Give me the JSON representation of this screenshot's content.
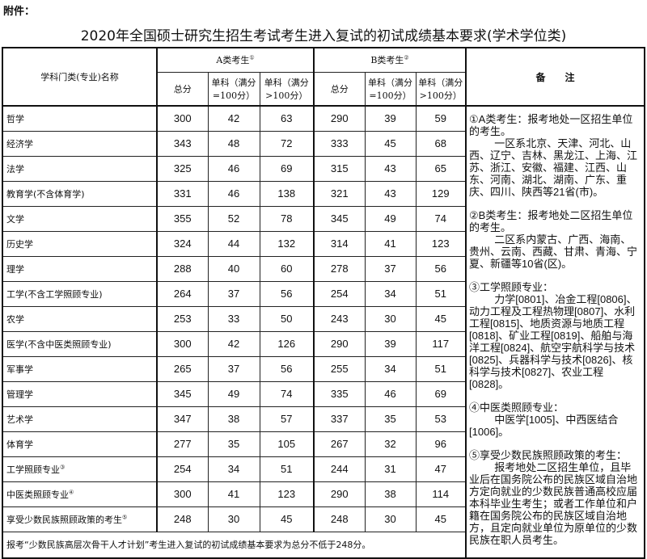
{
  "attachment_label": "附件：",
  "title": "2020年全国硕士研究生招生考试考生进入复试的初试成绩基本要求(学术学位类)",
  "header": {
    "name_col": "学科门类(专业)名称",
    "group_a": "A类考生",
    "group_a_mark": "①",
    "group_b": "B类考生",
    "group_b_mark": "②",
    "total": "总分",
    "single_100": "单科（满分=100分）",
    "single_over100": "单科（满分>100分）",
    "notes": "备　　注"
  },
  "rows": [
    {
      "name": "哲学",
      "mark": "",
      "a": [
        "300",
        "42",
        "63"
      ],
      "b": [
        "290",
        "39",
        "59"
      ]
    },
    {
      "name": "经济学",
      "mark": "",
      "a": [
        "343",
        "48",
        "72"
      ],
      "b": [
        "333",
        "45",
        "68"
      ]
    },
    {
      "name": "法学",
      "mark": "",
      "a": [
        "325",
        "46",
        "69"
      ],
      "b": [
        "315",
        "43",
        "65"
      ]
    },
    {
      "name": "教育学(不含体育学)",
      "mark": "",
      "a": [
        "331",
        "46",
        "138"
      ],
      "b": [
        "321",
        "43",
        "129"
      ]
    },
    {
      "name": "文学",
      "mark": "",
      "a": [
        "355",
        "52",
        "78"
      ],
      "b": [
        "345",
        "49",
        "74"
      ]
    },
    {
      "name": "历史学",
      "mark": "",
      "a": [
        "324",
        "44",
        "132"
      ],
      "b": [
        "314",
        "41",
        "123"
      ]
    },
    {
      "name": "理学",
      "mark": "",
      "a": [
        "288",
        "40",
        "60"
      ],
      "b": [
        "278",
        "37",
        "56"
      ]
    },
    {
      "name": "工学(不含工学照顾专业)",
      "mark": "",
      "a": [
        "264",
        "37",
        "56"
      ],
      "b": [
        "254",
        "34",
        "51"
      ]
    },
    {
      "name": "农学",
      "mark": "",
      "a": [
        "253",
        "33",
        "50"
      ],
      "b": [
        "243",
        "30",
        "45"
      ]
    },
    {
      "name": "医学(不含中医类照顾专业)",
      "mark": "",
      "a": [
        "300",
        "42",
        "126"
      ],
      "b": [
        "290",
        "39",
        "117"
      ]
    },
    {
      "name": "军事学",
      "mark": "",
      "a": [
        "265",
        "37",
        "56"
      ],
      "b": [
        "255",
        "34",
        "51"
      ]
    },
    {
      "name": "管理学",
      "mark": "",
      "a": [
        "345",
        "49",
        "74"
      ],
      "b": [
        "335",
        "46",
        "69"
      ]
    },
    {
      "name": "艺术学",
      "mark": "",
      "a": [
        "347",
        "38",
        "57"
      ],
      "b": [
        "337",
        "35",
        "53"
      ]
    },
    {
      "name": "体育学",
      "mark": "",
      "a": [
        "277",
        "35",
        "105"
      ],
      "b": [
        "267",
        "32",
        "96"
      ]
    },
    {
      "name": "工学照顾专业",
      "mark": "③",
      "a": [
        "254",
        "34",
        "51"
      ],
      "b": [
        "244",
        "31",
        "47"
      ]
    },
    {
      "name": "中医类照顾专业",
      "mark": "④",
      "a": [
        "300",
        "41",
        "123"
      ],
      "b": [
        "290",
        "38",
        "114"
      ]
    },
    {
      "name": "享受少数民族照顾政策的考生",
      "mark": "⑤",
      "a": [
        "248",
        "30",
        "45"
      ],
      "b": [
        "248",
        "30",
        "45"
      ]
    }
  ],
  "notes": [
    {
      "head": "①A类考生：报考地处一区招生单位的考生。",
      "body": "一区系北京、天津、河北、山西、辽宁、吉林、黑龙江、上海、江苏、浙江、安徽、福建、江西、山东、河南、湖北、湖南、广东、重庆、四川、陕西等21省(市)。"
    },
    {
      "head": "②B类考生：报考地处二区招生单位的考生。",
      "body": "二区系内蒙古、广西、海南、贵州、云南、西藏、甘肃、青海、宁夏、新疆等10省(区)。"
    },
    {
      "head": "③工学照顾专业：",
      "body": "力学[0801]、冶金工程[0806]、动力工程及工程热物理[0807]、水利工程[0815]、地质资源与地质工程[0818]、矿业工程[0819]、船舶与海洋工程[0824]、航空宇航科学与技术[0825]、兵器科学与技术[0826]、核科学与技术[0827]、农业工程[0828]。"
    },
    {
      "head": "④中医类照顾专业：",
      "body": "中医学[1005]、中西医结合[1006]。"
    },
    {
      "head": "⑤享受少数民族照顾政策的考生：",
      "body": "报考地处二区招生单位，且毕业后在国务院公布的民族区域自治地方定向就业的少数民族普通高校应届本科毕业生考生；或者工作单位和户籍在国务院公布的民族区域自治地方，且定向就业单位为原单位的少数民族在职人员考生。"
    }
  ],
  "footer": "报考“少数民族高层次骨干人才计划”考生进入复试的初试成绩基本要求为总分不低于248分。"
}
